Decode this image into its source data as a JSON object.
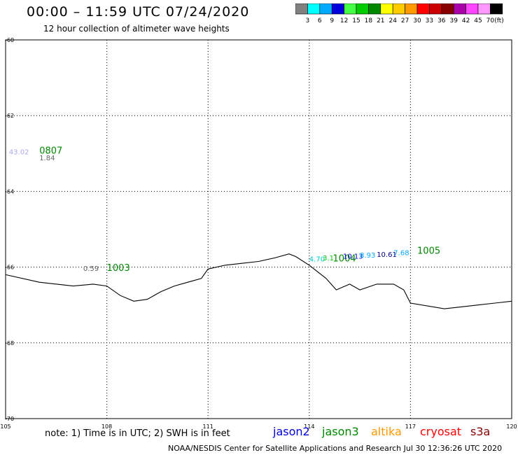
{
  "header": {
    "title": "00:00 – 11:59 UTC 07/24/2020",
    "subtitle": "12 hour collection of altimeter wave heights"
  },
  "colorbar": {
    "colors": [
      "#808080",
      "#00ffff",
      "#00aaff",
      "#0000dd",
      "#44ff44",
      "#00cc00",
      "#008800",
      "#ffff00",
      "#ffcc00",
      "#ff9900",
      "#ff0000",
      "#cc0000",
      "#880000",
      "#aa00aa",
      "#ff44ff",
      "#ff99ff",
      "#000000"
    ],
    "labels": [
      "3",
      "6",
      "9",
      "12",
      "15",
      "18",
      "21",
      "24",
      "27",
      "30",
      "33",
      "36",
      "39",
      "42",
      "45",
      "70"
    ],
    "unit": "(ft)"
  },
  "map": {
    "lon_range": [
      105,
      120
    ],
    "lat_range": [
      -70,
      -60
    ],
    "x_ticks": [
      "105",
      "108",
      "111",
      "114",
      "117",
      "120"
    ],
    "y_ticks": [
      "-60",
      "-62",
      "-64",
      "-66",
      "-68",
      "-70"
    ],
    "grid": "dotted",
    "coastline": [
      [
        105,
        -66.2
      ],
      [
        106,
        -66.4
      ],
      [
        107,
        -66.5
      ],
      [
        107.6,
        -66.45
      ],
      [
        108,
        -66.5
      ],
      [
        108.4,
        -66.75
      ],
      [
        108.8,
        -66.9
      ],
      [
        109.2,
        -66.85
      ],
      [
        109.6,
        -66.65
      ],
      [
        110,
        -66.5
      ],
      [
        110.4,
        -66.4
      ],
      [
        110.8,
        -66.3
      ],
      [
        111,
        -66.05
      ],
      [
        111.5,
        -65.95
      ],
      [
        112,
        -65.9
      ],
      [
        112.5,
        -65.85
      ],
      [
        113,
        -65.75
      ],
      [
        113.4,
        -65.65
      ],
      [
        113.6,
        -65.72
      ],
      [
        114,
        -65.95
      ],
      [
        114.5,
        -66.3
      ],
      [
        114.8,
        -66.6
      ],
      [
        115.2,
        -66.45
      ],
      [
        115.5,
        -66.6
      ],
      [
        116,
        -66.45
      ],
      [
        116.5,
        -66.45
      ],
      [
        116.8,
        -66.6
      ],
      [
        117,
        -66.95
      ],
      [
        118,
        -67.1
      ],
      [
        118.5,
        -67.05
      ],
      [
        119,
        -67.0
      ],
      [
        119.5,
        -66.95
      ],
      [
        120,
        -66.9
      ]
    ],
    "labels": [
      {
        "text": "43.02",
        "lon": 105.1,
        "lat": -63.02,
        "color": "#aaaaee",
        "size": 10
      },
      {
        "text": "0807",
        "lon": 106.0,
        "lat": -63.0,
        "color": "#008800",
        "size": 13
      },
      {
        "text": "1.84",
        "lon": 106.0,
        "lat": -63.18,
        "color": "#666666",
        "size": 10
      },
      {
        "text": "0.59",
        "lon": 107.3,
        "lat": -66.1,
        "color": "#666666",
        "size": 10
      },
      {
        "text": "1003",
        "lon": 108.0,
        "lat": -66.1,
        "color": "#008800",
        "size": 13
      },
      {
        "text": "4.70",
        "lon": 114.0,
        "lat": -65.85,
        "color": "#00cccc",
        "size": 10
      },
      {
        "text": "3.1",
        "lon": 114.4,
        "lat": -65.82,
        "color": "#00cc00",
        "size": 10
      },
      {
        "text": "1004",
        "lon": 114.7,
        "lat": -65.85,
        "color": "#008800",
        "size": 13
      },
      {
        "text": "10.13",
        "lon": 115.0,
        "lat": -65.78,
        "color": "#0000dd",
        "size": 10
      },
      {
        "text": "8.93",
        "lon": 115.5,
        "lat": -65.75,
        "color": "#00aaff",
        "size": 10
      },
      {
        "text": "10.61",
        "lon": 116.0,
        "lat": -65.73,
        "color": "#000088",
        "size": 10
      },
      {
        "text": "7.68",
        "lon": 116.5,
        "lat": -65.68,
        "color": "#00aaff",
        "size": 10
      },
      {
        "text": "1005",
        "lon": 117.2,
        "lat": -65.65,
        "color": "#008800",
        "size": 13
      }
    ]
  },
  "note": "note: 1) Time is in UTC; 2) SWH is in feet",
  "satellites": [
    {
      "name": "jason2",
      "color": "#0000dd"
    },
    {
      "name": "jason3",
      "color": "#008800"
    },
    {
      "name": "altika",
      "color": "#ff9900"
    },
    {
      "name": "cryosat",
      "color": "#ff0000"
    },
    {
      "name": "s3a",
      "color": "#880000"
    }
  ],
  "footer": "NOAA/NESDIS Center for Satellite Applications and Research   Jul 30 12:36:26 UTC 2020"
}
